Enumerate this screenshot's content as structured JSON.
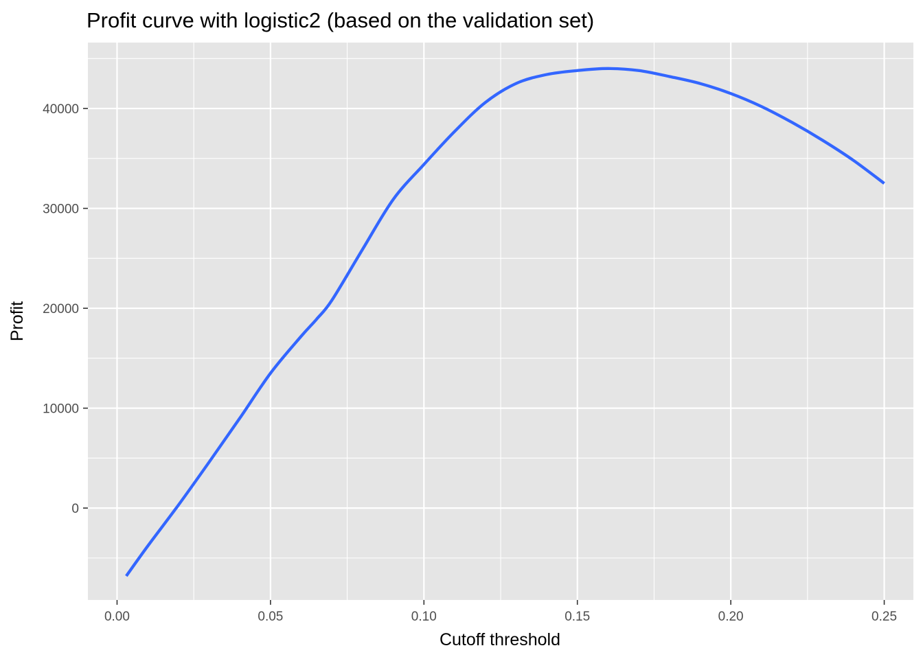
{
  "chart_data": {
    "type": "line",
    "title": "Profit curve with logistic2 (based on the validation set)",
    "xlabel": "Cutoff threshold",
    "ylabel": "Profit",
    "xlim": [
      -0.0095,
      0.2595
    ],
    "ylim": [
      -9200,
      46600
    ],
    "x_ticks": [
      0.0,
      0.05,
      0.1,
      0.15,
      0.2,
      0.25
    ],
    "x_tick_labels": [
      "0.00",
      "0.05",
      "0.10",
      "0.15",
      "0.20",
      "0.25"
    ],
    "y_ticks": [
      0,
      10000,
      20000,
      30000,
      40000
    ],
    "y_tick_labels": [
      "0",
      "10000",
      "20000",
      "30000",
      "40000"
    ],
    "grid": true,
    "series": [
      {
        "color": "#3366FF",
        "x": [
          0.003,
          0.01,
          0.02,
          0.03,
          0.04,
          0.05,
          0.06,
          0.065,
          0.07,
          0.08,
          0.09,
          0.1,
          0.11,
          0.12,
          0.13,
          0.14,
          0.15,
          0.16,
          0.17,
          0.18,
          0.19,
          0.2,
          0.21,
          0.22,
          0.23,
          0.24,
          0.25
        ],
        "y": [
          -6800,
          -3800,
          300,
          4600,
          9000,
          13500,
          17200,
          18900,
          20800,
          25900,
          30900,
          34400,
          37700,
          40600,
          42500,
          43400,
          43800,
          44000,
          43800,
          43200,
          42500,
          41500,
          40200,
          38600,
          36800,
          34800,
          32500
        ]
      }
    ],
    "style": {
      "panel_background": "#E5E5E5",
      "major_grid": "#FFFFFF",
      "line_color": "#3366FF",
      "tick_color": "#333333"
    }
  }
}
